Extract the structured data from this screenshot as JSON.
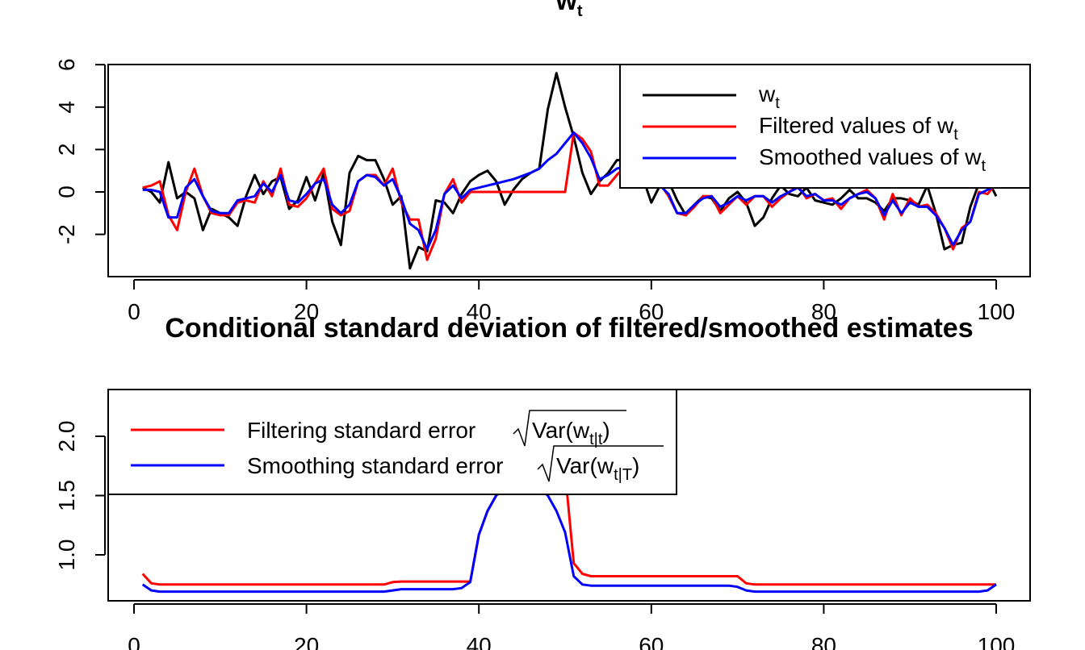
{
  "chart_data": [
    {
      "type": "line",
      "title": "w",
      "title_subscript": "t",
      "xlabel": "",
      "ylabel": "",
      "xlim": [
        0,
        100
      ],
      "ylim": [
        -3.8,
        6
      ],
      "x_ticks": [
        "0",
        "20",
        "40",
        "60",
        "80",
        "100"
      ],
      "y_ticks": [
        "-2",
        "0",
        "2",
        "4",
        "6"
      ],
      "legend_position": "top-right",
      "legend": [
        {
          "label": "w",
          "sub": "t",
          "color": "#000000"
        },
        {
          "label": "Filtered values of w",
          "sub": "t",
          "color": "#ff0000"
        },
        {
          "label": "Smoothed values of w",
          "sub": "t",
          "color": "#0000ff"
        }
      ],
      "x": [
        1,
        2,
        3,
        4,
        5,
        6,
        7,
        8,
        9,
        10,
        11,
        12,
        13,
        14,
        15,
        16,
        17,
        18,
        19,
        20,
        21,
        22,
        23,
        24,
        25,
        26,
        27,
        28,
        29,
        30,
        31,
        32,
        33,
        34,
        35,
        36,
        37,
        38,
        39,
        40,
        41,
        42,
        43,
        44,
        45,
        46,
        47,
        48,
        49,
        50,
        51,
        52,
        53,
        54,
        55,
        56,
        57,
        58,
        59,
        60,
        61,
        62,
        63,
        64,
        65,
        66,
        67,
        68,
        69,
        70,
        71,
        72,
        73,
        74,
        75,
        76,
        77,
        78,
        79,
        80,
        81,
        82,
        83,
        84,
        85,
        86,
        87,
        88,
        89,
        90,
        91,
        92,
        93,
        94,
        95,
        96,
        97,
        98,
        99,
        100
      ],
      "series": [
        {
          "name": "w",
          "color": "#000000",
          "values": [
            0.2,
            0.0,
            -0.5,
            1.4,
            -0.3,
            0.0,
            -0.3,
            -1.8,
            -0.8,
            -1.0,
            -1.2,
            -1.6,
            -0.2,
            0.8,
            -0.1,
            0.5,
            0.7,
            -0.8,
            -0.4,
            0.7,
            -0.4,
            0.9,
            -1.4,
            -2.5,
            0.9,
            1.7,
            1.5,
            1.5,
            0.6,
            -0.6,
            -0.2,
            -3.6,
            -2.6,
            -2.8,
            -0.4,
            -0.5,
            -1.0,
            -0.1,
            0.5,
            0.8,
            1.0,
            0.5,
            -0.6,
            0.1,
            0.6,
            0.9,
            1.1,
            3.9,
            5.6,
            4.0,
            2.6,
            0.9,
            -0.1,
            0.5,
            0.9,
            1.5,
            1.5,
            1.5,
            0.7,
            -0.5,
            0.3,
            0.5,
            -0.4,
            -1.1,
            -0.6,
            -0.2,
            -0.3,
            -0.9,
            -0.3,
            0.0,
            -0.5,
            -1.6,
            -1.2,
            -0.3,
            0.3,
            -0.1,
            -0.2,
            0.2,
            -0.4,
            -0.5,
            -0.6,
            -0.3,
            0.1,
            -0.3,
            -0.3,
            -0.5,
            -0.9,
            -0.3,
            -0.3,
            -0.4,
            -0.6,
            0.3,
            -1.0,
            -2.7,
            -2.5,
            -2.4,
            -0.7,
            0.4,
            0.6,
            -0.2
          ]
        },
        {
          "name": "Filtered values of w",
          "color": "#ff0000",
          "values": [
            0.2,
            0.3,
            0.5,
            -1.1,
            -1.8,
            0.0,
            1.1,
            -0.2,
            -1.0,
            -1.1,
            -1.1,
            -0.5,
            -0.4,
            -0.5,
            0.5,
            -0.2,
            1.1,
            -0.6,
            -0.7,
            -0.3,
            0.4,
            1.1,
            -0.8,
            -1.1,
            -0.9,
            0.5,
            0.8,
            0.8,
            0.3,
            1.1,
            -0.5,
            -1.3,
            -1.3,
            -3.2,
            -2.2,
            -0.1,
            0.6,
            -0.5,
            0.0,
            0.0,
            0.0,
            0.0,
            0.0,
            0.0,
            0.0,
            0.0,
            0.0,
            0.0,
            0.0,
            0.0,
            2.8,
            2.5,
            1.9,
            0.3,
            0.3,
            0.8,
            1.2,
            1.0,
            0.8,
            0.6,
            0.4,
            -0.2,
            -1.0,
            -1.1,
            -0.7,
            -0.2,
            -0.2,
            -1.0,
            -0.6,
            -0.2,
            -0.6,
            -0.2,
            -0.2,
            -0.7,
            -0.3,
            0.0,
            0.3,
            -0.3,
            -0.1,
            -0.4,
            -0.3,
            -0.8,
            -0.3,
            -0.1,
            0.1,
            -0.3,
            -1.3,
            -0.1,
            -1.1,
            -0.3,
            -0.7,
            -0.6,
            -1.0,
            -1.7,
            -2.7,
            -1.7,
            -1.4,
            0.0,
            -0.1,
            0.4
          ]
        },
        {
          "name": "Smoothed values of w",
          "color": "#0000ff",
          "values": [
            0.1,
            0.1,
            0.0,
            -1.2,
            -1.2,
            0.2,
            0.6,
            -0.2,
            -0.9,
            -1.0,
            -1.0,
            -0.4,
            -0.3,
            -0.2,
            0.4,
            0.0,
            0.8,
            -0.4,
            -0.5,
            -0.1,
            0.4,
            0.6,
            -0.6,
            -1.0,
            -0.6,
            0.5,
            0.8,
            0.7,
            0.3,
            0.6,
            -0.3,
            -1.5,
            -1.8,
            -2.7,
            -1.8,
            -0.1,
            0.3,
            -0.3,
            0.1,
            0.2,
            0.3,
            0.4,
            0.5,
            0.6,
            0.75,
            0.9,
            1.1,
            1.5,
            1.8,
            2.3,
            2.8,
            2.3,
            1.6,
            0.6,
            0.8,
            1.1,
            1.2,
            1.0,
            0.8,
            0.5,
            0.3,
            -0.1,
            -1.0,
            -1.0,
            -0.6,
            -0.3,
            -0.2,
            -0.7,
            -0.5,
            -0.2,
            -0.4,
            -0.2,
            -0.2,
            -0.5,
            -0.2,
            0.0,
            0.2,
            -0.2,
            -0.1,
            -0.4,
            -0.4,
            -0.6,
            -0.3,
            -0.1,
            0.0,
            -0.3,
            -1.1,
            -0.4,
            -1.0,
            -0.5,
            -0.7,
            -0.7,
            -1.1,
            -1.7,
            -2.5,
            -1.8,
            -1.4,
            -0.1,
            0.1,
            0.3
          ]
        }
      ]
    },
    {
      "type": "line",
      "title": "Conditional standard deviation of filtered/smoothed estimates",
      "xlabel": "",
      "ylabel": "",
      "xlim": [
        0,
        100
      ],
      "ylim": [
        0.61,
        2.42
      ],
      "x_ticks": [
        "0",
        "20",
        "40",
        "60",
        "80",
        "100"
      ],
      "y_ticks": [
        "1.0",
        "1.5",
        "2.0"
      ],
      "legend_position": "top-left",
      "legend": [
        {
          "label": "Filtering standard error",
          "var_prefix": "Var",
          "var_arg": "w",
          "var_sub": "t|t",
          "color": "#ff0000"
        },
        {
          "label": "Smoothing standard error",
          "var_prefix": "Var",
          "var_arg": "w",
          "var_sub": "t|T",
          "color": "#0000ff"
        }
      ],
      "x": [
        1,
        2,
        3,
        4,
        5,
        6,
        7,
        8,
        9,
        10,
        11,
        12,
        13,
        14,
        15,
        16,
        17,
        18,
        19,
        20,
        21,
        22,
        23,
        24,
        25,
        26,
        27,
        28,
        29,
        30,
        31,
        32,
        33,
        34,
        35,
        36,
        37,
        38,
        39,
        40,
        41,
        42,
        43,
        44,
        45,
        46,
        47,
        48,
        49,
        50,
        51,
        52,
        53,
        54,
        55,
        56,
        57,
        58,
        59,
        60,
        61,
        62,
        63,
        64,
        65,
        66,
        67,
        68,
        69,
        70,
        71,
        72,
        73,
        74,
        75,
        76,
        77,
        78,
        79,
        80,
        81,
        82,
        83,
        84,
        85,
        86,
        87,
        88,
        89,
        90,
        91,
        92,
        93,
        94,
        95,
        96,
        97,
        98,
        99,
        100
      ],
      "series": [
        {
          "name": "Filtering standard error",
          "color": "#ff0000",
          "values": [
            0.84,
            0.76,
            0.75,
            0.75,
            0.75,
            0.75,
            0.75,
            0.75,
            0.75,
            0.75,
            0.75,
            0.75,
            0.75,
            0.75,
            0.75,
            0.75,
            0.75,
            0.75,
            0.75,
            0.75,
            0.75,
            0.75,
            0.75,
            0.75,
            0.75,
            0.75,
            0.75,
            0.75,
            0.75,
            0.77,
            0.775,
            0.775,
            0.775,
            0.775,
            0.775,
            0.775,
            0.775,
            0.775,
            0.775,
            1.17,
            1.37,
            1.5,
            1.57,
            1.62,
            1.65,
            1.67,
            1.68,
            1.69,
            1.7,
            1.7,
            0.93,
            0.84,
            0.82,
            0.82,
            0.82,
            0.82,
            0.82,
            0.82,
            0.82,
            0.82,
            0.82,
            0.82,
            0.82,
            0.82,
            0.82,
            0.82,
            0.82,
            0.82,
            0.82,
            0.82,
            0.76,
            0.75,
            0.75,
            0.75,
            0.75,
            0.75,
            0.75,
            0.75,
            0.75,
            0.75,
            0.75,
            0.75,
            0.75,
            0.75,
            0.75,
            0.75,
            0.75,
            0.75,
            0.75,
            0.75,
            0.75,
            0.75,
            0.75,
            0.75,
            0.75,
            0.75,
            0.75,
            0.75,
            0.75,
            0.75
          ]
        },
        {
          "name": "Smoothing standard error",
          "color": "#0000ff",
          "values": [
            0.75,
            0.7,
            0.69,
            0.69,
            0.69,
            0.69,
            0.69,
            0.69,
            0.69,
            0.69,
            0.69,
            0.69,
            0.69,
            0.69,
            0.69,
            0.69,
            0.69,
            0.69,
            0.69,
            0.69,
            0.69,
            0.69,
            0.69,
            0.69,
            0.69,
            0.69,
            0.69,
            0.69,
            0.69,
            0.7,
            0.71,
            0.71,
            0.71,
            0.71,
            0.71,
            0.71,
            0.71,
            0.72,
            0.77,
            1.17,
            1.37,
            1.5,
            1.57,
            1.62,
            1.65,
            1.62,
            1.57,
            1.5,
            1.37,
            1.19,
            0.82,
            0.75,
            0.74,
            0.74,
            0.74,
            0.74,
            0.74,
            0.74,
            0.74,
            0.74,
            0.74,
            0.74,
            0.74,
            0.74,
            0.74,
            0.74,
            0.74,
            0.74,
            0.74,
            0.73,
            0.7,
            0.69,
            0.69,
            0.69,
            0.69,
            0.69,
            0.69,
            0.69,
            0.69,
            0.69,
            0.69,
            0.69,
            0.69,
            0.69,
            0.69,
            0.69,
            0.69,
            0.69,
            0.69,
            0.69,
            0.69,
            0.69,
            0.69,
            0.69,
            0.69,
            0.69,
            0.69,
            0.69,
            0.7,
            0.75
          ]
        }
      ]
    }
  ]
}
